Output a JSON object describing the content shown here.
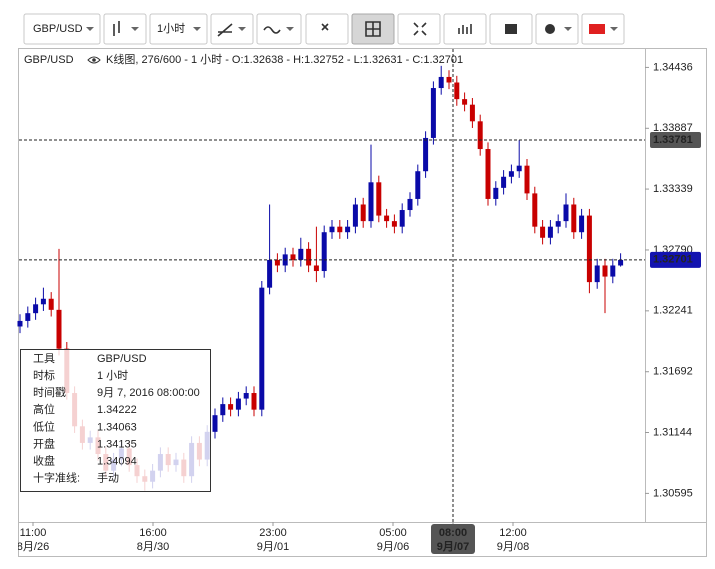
{
  "toolbar": {
    "symbol": "GBP/USD",
    "interval": "1小时"
  },
  "legend": {
    "symbol": "GBP/USD",
    "description": "K线图, 276/600 - 1 小时 - O:1.32638 - H:1.32752 - L:1.32631 - C:1.32701"
  },
  "info_panel": {
    "rows": [
      [
        "工具",
        "GBP/USD"
      ],
      [
        "时标",
        "1 小时"
      ],
      [
        "时间戳",
        "9月 7, 2016 08:00:00"
      ],
      [
        "高位",
        "1.34222"
      ],
      [
        "低位",
        "1.34063"
      ],
      [
        "开盘",
        "1.34135"
      ],
      [
        "收盘",
        "1.34094"
      ],
      [
        "十字准线:",
        "手动"
      ]
    ]
  },
  "chart_data": {
    "type": "candlestick",
    "up_color": "#0a0aa8",
    "down_color": "#c80000",
    "ylim": [
      1.30337,
      1.34593
    ],
    "yticks": [
      1.34436,
      1.33887,
      1.33339,
      {
        "value": 1.3279,
        "label": "1.32790"
      },
      1.32241,
      1.31692,
      1.31144,
      1.30595
    ],
    "xticks": [
      {
        "time": "11:00",
        "date": "8月/26"
      },
      {
        "time": "16:00",
        "date": "8月/30"
      },
      {
        "time": "23:00",
        "date": "9月/01"
      },
      {
        "time": "05:00",
        "date": "9月/06"
      },
      {
        "time": "08:00",
        "date": "9月/07"
      },
      {
        "time": "12:00",
        "date": "9月/08"
      }
    ],
    "crosshair_price": 1.33781,
    "last_price": 1.32701,
    "candles": [
      [
        1.321,
        1.3221,
        1.3204,
        1.3215
      ],
      [
        1.3215,
        1.3228,
        1.3209,
        1.3222
      ],
      [
        1.3222,
        1.3236,
        1.3216,
        1.323
      ],
      [
        1.323,
        1.3245,
        1.3224,
        1.3235
      ],
      [
        1.3235,
        1.3241,
        1.3219,
        1.3225
      ],
      [
        1.3225,
        1.328,
        1.3184,
        1.319
      ],
      [
        1.319,
        1.3196,
        1.3144,
        1.315
      ],
      [
        1.315,
        1.3156,
        1.3114,
        1.312
      ],
      [
        1.312,
        1.3126,
        1.3099,
        1.3105
      ],
      [
        1.3105,
        1.3116,
        1.3099,
        1.311
      ],
      [
        1.311,
        1.3116,
        1.3089,
        1.3095
      ],
      [
        1.3095,
        1.3101,
        1.3074,
        1.308
      ],
      [
        1.308,
        1.3096,
        1.3074,
        1.309
      ],
      [
        1.309,
        1.3106,
        1.3084,
        1.31
      ],
      [
        1.31,
        1.3106,
        1.3079,
        1.3085
      ],
      [
        1.3085,
        1.3091,
        1.3069,
        1.3075
      ],
      [
        1.3075,
        1.3081,
        1.3062,
        1.307
      ],
      [
        1.307,
        1.3086,
        1.3064,
        1.308
      ],
      [
        1.308,
        1.3101,
        1.3074,
        1.3095
      ],
      [
        1.3095,
        1.3101,
        1.3079,
        1.3085
      ],
      [
        1.3085,
        1.3096,
        1.3079,
        1.309
      ],
      [
        1.309,
        1.3096,
        1.3069,
        1.3075
      ],
      [
        1.3075,
        1.3111,
        1.3069,
        1.3105
      ],
      [
        1.3105,
        1.3111,
        1.3084,
        1.309
      ],
      [
        1.309,
        1.3121,
        1.3084,
        1.3115
      ],
      [
        1.3115,
        1.3136,
        1.3109,
        1.313
      ],
      [
        1.313,
        1.3146,
        1.3124,
        1.314
      ],
      [
        1.314,
        1.3146,
        1.3129,
        1.3135
      ],
      [
        1.3135,
        1.3151,
        1.3129,
        1.3145
      ],
      [
        1.3145,
        1.3156,
        1.3139,
        1.315
      ],
      [
        1.315,
        1.3156,
        1.3129,
        1.3135
      ],
      [
        1.3135,
        1.3251,
        1.3129,
        1.3245
      ],
      [
        1.3245,
        1.332,
        1.3239,
        1.327
      ],
      [
        1.327,
        1.3276,
        1.3259,
        1.3265
      ],
      [
        1.3265,
        1.3281,
        1.3259,
        1.3275
      ],
      [
        1.3275,
        1.3281,
        1.3264,
        1.327
      ],
      [
        1.327,
        1.329,
        1.3264,
        1.328
      ],
      [
        1.328,
        1.3286,
        1.3259,
        1.3265
      ],
      [
        1.3265,
        1.33,
        1.325,
        1.326
      ],
      [
        1.326,
        1.3301,
        1.3254,
        1.3295
      ],
      [
        1.3295,
        1.3306,
        1.3289,
        1.33
      ],
      [
        1.33,
        1.3306,
        1.3289,
        1.3295
      ],
      [
        1.3295,
        1.3306,
        1.3289,
        1.33
      ],
      [
        1.33,
        1.3326,
        1.3294,
        1.332
      ],
      [
        1.332,
        1.3326,
        1.3299,
        1.3305
      ],
      [
        1.3305,
        1.3374,
        1.3299,
        1.334
      ],
      [
        1.334,
        1.3346,
        1.3304,
        1.331
      ],
      [
        1.331,
        1.3316,
        1.3299,
        1.3305
      ],
      [
        1.3305,
        1.3311,
        1.3294,
        1.33
      ],
      [
        1.33,
        1.3321,
        1.3294,
        1.3315
      ],
      [
        1.3315,
        1.3331,
        1.3309,
        1.3325
      ],
      [
        1.3325,
        1.3356,
        1.3319,
        1.335
      ],
      [
        1.335,
        1.3386,
        1.3344,
        1.338
      ],
      [
        1.338,
        1.3431,
        1.3374,
        1.3425
      ],
      [
        1.3425,
        1.3445,
        1.3419,
        1.3435
      ],
      [
        1.3435,
        1.3441,
        1.3424,
        1.343
      ],
      [
        1.343,
        1.3436,
        1.3409,
        1.3415
      ],
      [
        1.3415,
        1.3421,
        1.3404,
        1.341
      ],
      [
        1.341,
        1.3416,
        1.3389,
        1.3395
      ],
      [
        1.3395,
        1.3401,
        1.3364,
        1.337
      ],
      [
        1.337,
        1.3376,
        1.3319,
        1.3325
      ],
      [
        1.3325,
        1.3341,
        1.3319,
        1.3335
      ],
      [
        1.3335,
        1.3351,
        1.3329,
        1.3345
      ],
      [
        1.3345,
        1.3356,
        1.3339,
        1.335
      ],
      [
        1.335,
        1.3378,
        1.3344,
        1.3355
      ],
      [
        1.3355,
        1.3361,
        1.3324,
        1.333
      ],
      [
        1.333,
        1.3336,
        1.3294,
        1.33
      ],
      [
        1.33,
        1.3306,
        1.3284,
        1.329
      ],
      [
        1.329,
        1.3306,
        1.3284,
        1.33
      ],
      [
        1.33,
        1.3311,
        1.3294,
        1.3305
      ],
      [
        1.3305,
        1.333,
        1.3299,
        1.332
      ],
      [
        1.332,
        1.3326,
        1.3289,
        1.3295
      ],
      [
        1.3295,
        1.3316,
        1.3289,
        1.331
      ],
      [
        1.331,
        1.3316,
        1.324,
        1.325
      ],
      [
        1.325,
        1.3271,
        1.3244,
        1.3265
      ],
      [
        1.3265,
        1.3271,
        1.3222,
        1.3255
      ],
      [
        1.3255,
        1.3271,
        1.3249,
        1.3265
      ],
      [
        1.3265,
        1.3276,
        1.3264,
        1.327
      ]
    ]
  }
}
